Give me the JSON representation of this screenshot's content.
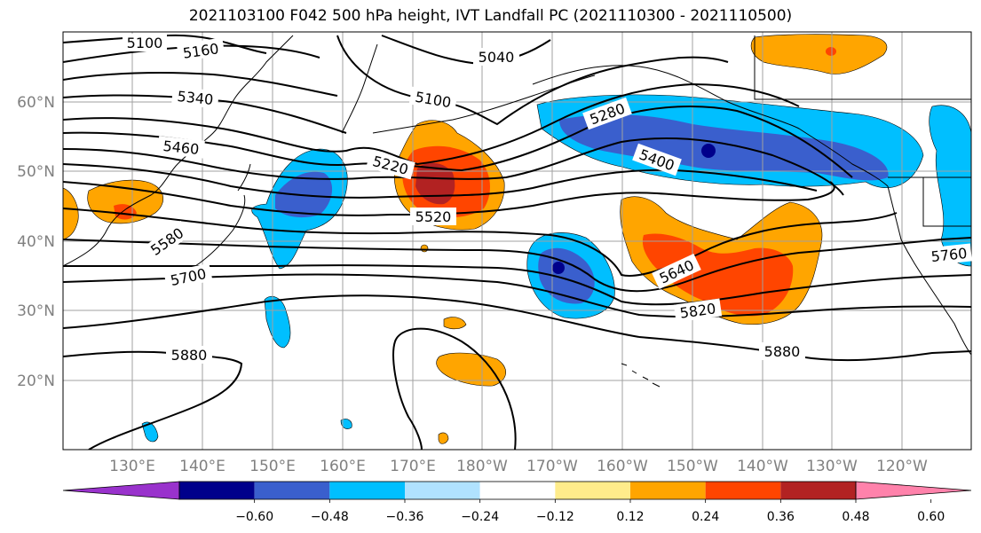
{
  "title": "2021103100 F042 500 hPa height, IVT Landfall PC (2021110300 - 2021110500)",
  "lat_labels": [
    "60°N",
    "50°N",
    "40°N",
    "30°N",
    "20°N"
  ],
  "lon_labels": [
    "130°E",
    "140°E",
    "150°E",
    "160°E",
    "170°E",
    "180°W",
    "170°W",
    "160°W",
    "150°W",
    "140°W",
    "130°W",
    "120°W"
  ],
  "height_contour_labels": [
    "5100",
    "5160",
    "5040",
    "5340",
    "5100",
    "5280",
    "5460",
    "5220",
    "5400",
    "5520",
    "5580",
    "5700",
    "5640",
    "5760",
    "5820",
    "5880",
    "5880"
  ],
  "colorbar": {
    "tick_labels": [
      "−0.60",
      "−0.48",
      "−0.36",
      "−0.24",
      "−0.12",
      "0.12",
      "0.24",
      "0.36",
      "0.48",
      "0.60"
    ],
    "colors": [
      "#9932cc",
      "#00008b",
      "#3a5fcd",
      "#00bfff",
      "#b0e2ff",
      "#ffffff",
      "#ffec8b",
      "#ffa500",
      "#ff4500",
      "#b22222",
      "#ff82ab"
    ]
  },
  "fill_colors": {
    "neg_strong": "#3a5fcd",
    "neg_mid": "#00bfff",
    "neg_weak": "#b0e2ff",
    "pos_weak": "#ffec8b",
    "pos_mid": "#ffa500",
    "pos_strong": "#ff4500",
    "pos_max": "#b22222",
    "dark_core": "#00008b"
  }
}
